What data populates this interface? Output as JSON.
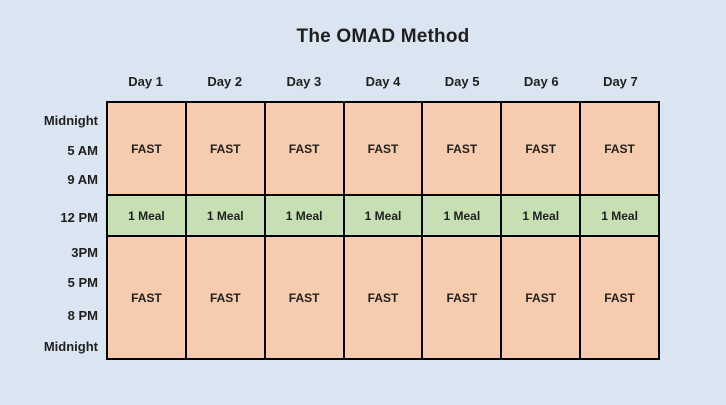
{
  "title": "The OMAD Method",
  "colors": {
    "background": "#dbe5f1",
    "fast_fill": "#f7cbad",
    "meal_fill": "#c6e0b4",
    "border": "#000000",
    "text": "#1f1f1f"
  },
  "table": {
    "day_headers": [
      "Day 1",
      "Day 2",
      "Day 3",
      "Day 4",
      "Day 5",
      "Day 6",
      "Day 7"
    ],
    "time_labels": [
      "Midnight",
      "5 AM",
      "9 AM",
      "12 PM",
      "3PM",
      "5 PM",
      "8 PM",
      "Midnight"
    ],
    "rows": [
      {
        "type": "fast",
        "label": "FAST"
      },
      {
        "type": "meal",
        "label": "1 Meal"
      },
      {
        "type": "fast",
        "label": "FAST"
      }
    ]
  }
}
